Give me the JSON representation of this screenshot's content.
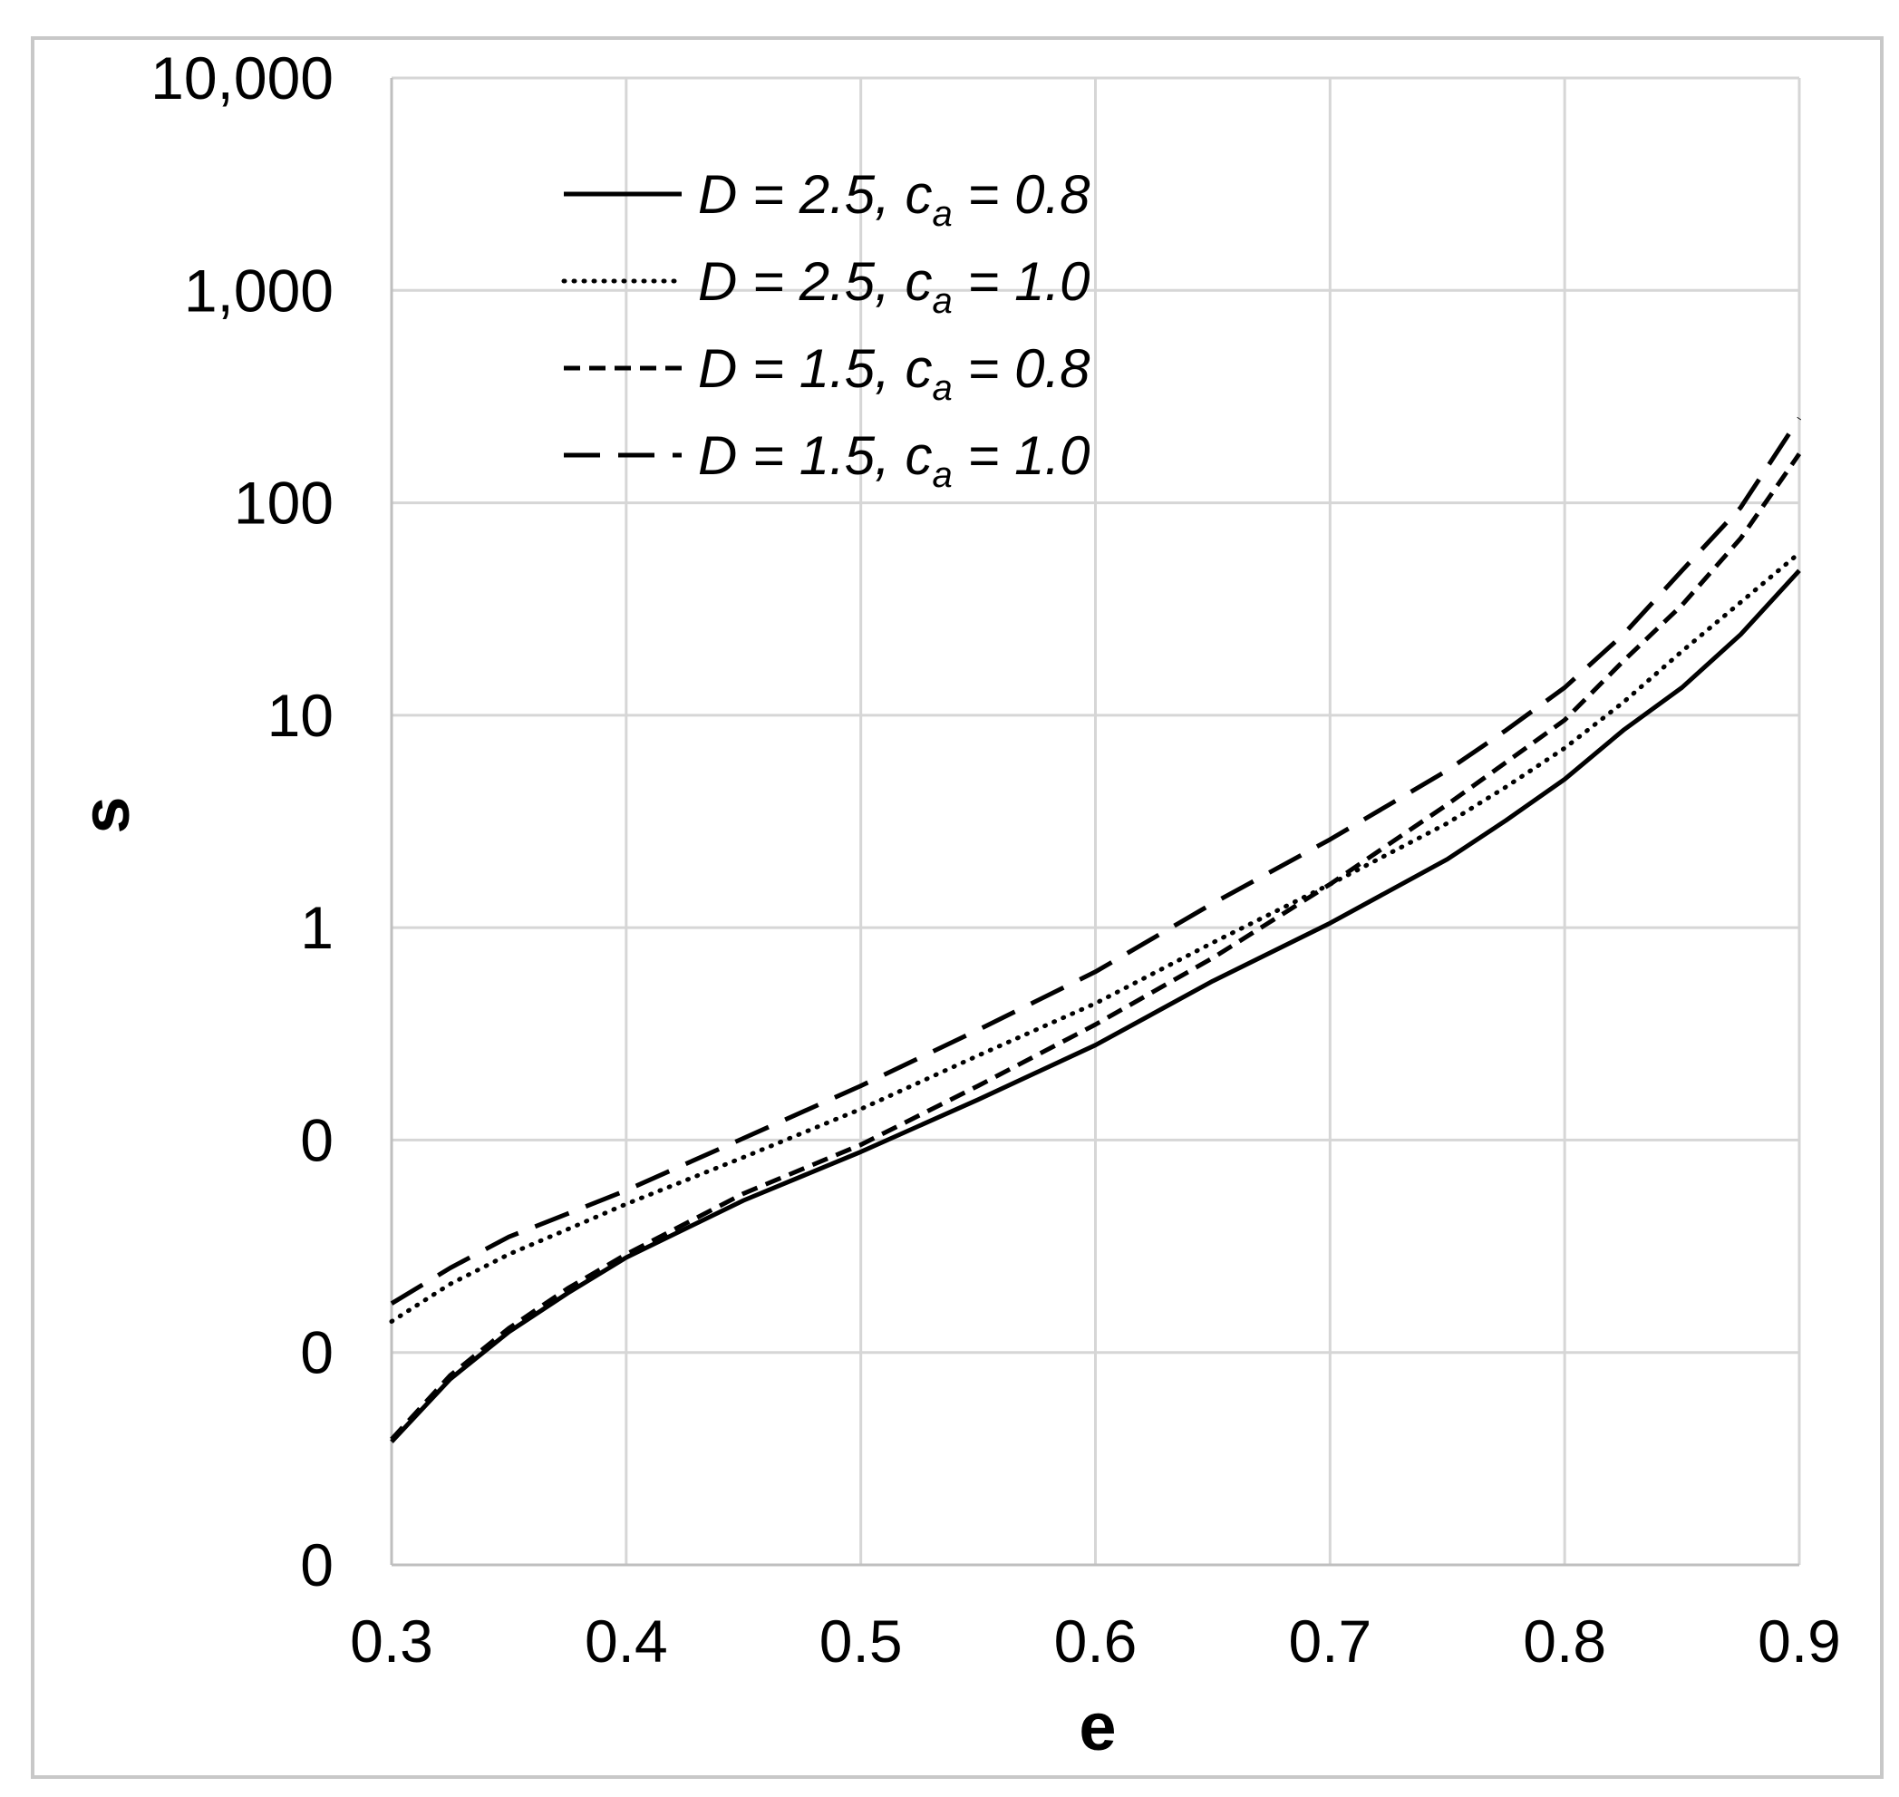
{
  "chart_data": {
    "type": "line",
    "title": "",
    "xlabel": "e",
    "ylabel": "s",
    "x_axis": {
      "min": 0.3,
      "max": 0.9,
      "ticks": [
        0.3,
        0.4,
        0.5,
        0.6,
        0.7,
        0.8,
        0.9
      ],
      "tick_labels": [
        "0.3",
        "0.4",
        "0.5",
        "0.6",
        "0.7",
        "0.8",
        "0.9"
      ]
    },
    "y_axis": {
      "scale": "log",
      "min": 0.001,
      "max": 10000,
      "ticks": [
        0.001,
        0.01,
        0.1,
        1,
        10,
        100,
        1000,
        10000
      ],
      "tick_labels": [
        "0",
        "0",
        "0",
        "1",
        "10",
        "100",
        "1,000",
        "10,000"
      ]
    },
    "grid": true,
    "legend_position": "top-left",
    "x": [
      0.3,
      0.325,
      0.35,
      0.375,
      0.4,
      0.45,
      0.5,
      0.55,
      0.6,
      0.65,
      0.7,
      0.75,
      0.775,
      0.8,
      0.825,
      0.85,
      0.875,
      0.9
    ],
    "series": [
      {
        "name": "D = 2.5, ca = 0.8",
        "label_parts": [
          "D = 2.5, c",
          "a",
          " = 0.8"
        ],
        "style": "solid",
        "color": "#000000",
        "values": [
          0.0038,
          0.0075,
          0.0125,
          0.019,
          0.028,
          0.052,
          0.088,
          0.155,
          0.28,
          0.56,
          1.05,
          2.1,
          3.2,
          5.0,
          8.5,
          13.5,
          24,
          48
        ]
      },
      {
        "name": "D = 2.5, ca = 1.0",
        "label_parts": [
          "D = 2.5, c",
          "a",
          " = 1.0"
        ],
        "style": "dotted",
        "color": "#000000",
        "values": [
          0.014,
          0.021,
          0.029,
          0.038,
          0.05,
          0.083,
          0.14,
          0.25,
          0.44,
          0.85,
          1.6,
          3.1,
          4.6,
          7.0,
          11.5,
          20,
          34,
          58
        ]
      },
      {
        "name": "D = 1.5, ca = 0.8",
        "label_parts": [
          "D = 1.5, c",
          "a",
          " = 0.8"
        ],
        "style": "short-dash",
        "color": "#000000",
        "values": [
          0.0039,
          0.0078,
          0.013,
          0.02,
          0.029,
          0.056,
          0.095,
          0.18,
          0.35,
          0.72,
          1.6,
          3.8,
          6.0,
          9.5,
          18,
          33,
          68,
          170
        ]
      },
      {
        "name": "D = 1.5, ca = 1.0",
        "label_parts": [
          "D = 1.5, c",
          "a",
          " = 1.0"
        ],
        "style": "long-dash",
        "color": "#000000",
        "values": [
          0.017,
          0.025,
          0.035,
          0.045,
          0.058,
          0.102,
          0.18,
          0.33,
          0.62,
          1.3,
          2.6,
          5.5,
          8.5,
          13.5,
          24,
          48,
          95,
          250
        ]
      }
    ]
  }
}
